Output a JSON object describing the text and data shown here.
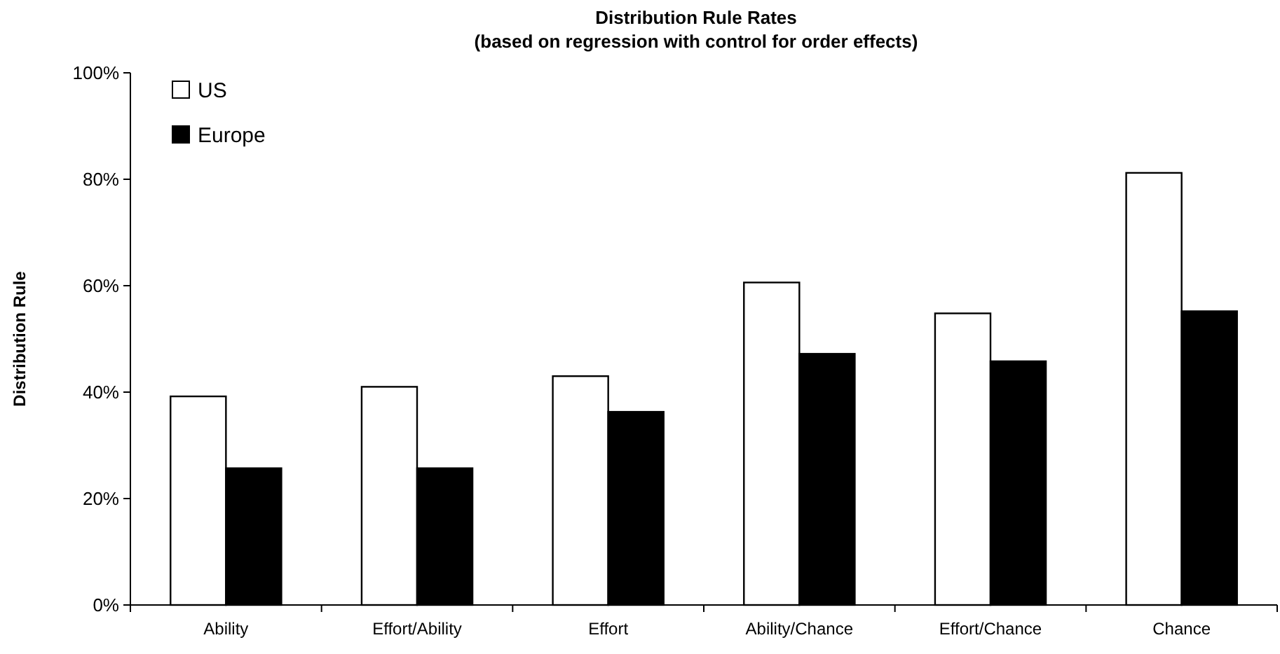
{
  "chart_data": {
    "type": "bar",
    "title": "Distribution Rule Rates",
    "subtitle": "(based on regression with control for order effects)",
    "ylabel": "Distribution Rule",
    "categories": [
      "Ability",
      "Effort/Ability",
      "Effort",
      "Ability/Chance",
      "Effort/Chance",
      "Chance"
    ],
    "series": [
      {
        "name": "US",
        "color": "#ffffff",
        "values": [
          39.2,
          41.0,
          43.0,
          60.6,
          54.8,
          81.2
        ]
      },
      {
        "name": "Europe",
        "color": "#000000",
        "values": [
          25.7,
          25.7,
          36.3,
          47.2,
          45.8,
          55.2
        ]
      }
    ],
    "ylim": [
      0,
      100
    ],
    "yticks": [
      {
        "value": 0,
        "label": "0%"
      },
      {
        "value": 20,
        "label": "20%"
      },
      {
        "value": 40,
        "label": "40%"
      },
      {
        "value": 60,
        "label": "60%"
      },
      {
        "value": 80,
        "label": "80%"
      },
      {
        "value": 100,
        "label": "100%"
      }
    ],
    "grid": false,
    "legend": "top left"
  }
}
